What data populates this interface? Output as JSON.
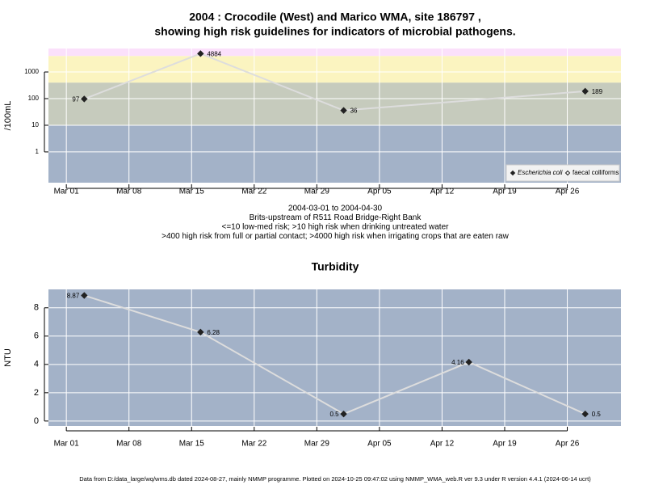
{
  "title": [
    "2004 : Crocodile (West) and Marico WMA, site 186797 ,",
    "showing high risk guidelines for indicators of microbial pathogens."
  ],
  "footer": "Data from D:/data_large/wq/wms.db dated 2024-08-27, mainly NMMP programme. Plotted on 2024-10-25 09:47:02 using NMMP_WMA_web.R ver 9.3 under R version 4.4.1 (2024-06-14 ucrt)",
  "chart_data": [
    {
      "type": "line",
      "log_y": true,
      "ylabel": "/100mL",
      "x": [
        "Mar 03",
        "Mar 16",
        "Apr 01",
        "Apr 28"
      ],
      "series": [
        {
          "name": "Escherichia coli",
          "color": "#222222",
          "values": [
            97,
            4884,
            36,
            189
          ]
        },
        {
          "name": "faecal colliforms",
          "color": "#222222",
          "values": [
            null,
            null,
            null,
            null
          ]
        }
      ],
      "line_color": "#dddddd",
      "xlim": [
        "Feb 28",
        "May 02"
      ],
      "xticks": [
        "Mar 01",
        "Mar 08",
        "Mar 15",
        "Mar 22",
        "Mar 29",
        "Apr 05",
        "Apr 12",
        "Apr 19",
        "Apr 26"
      ],
      "ylim": [
        0.07,
        7600
      ],
      "yticks": [
        1,
        10,
        100,
        1000
      ],
      "grid": true,
      "legend": "bottom-right",
      "bands": {
        "thresholds": [
          10,
          400,
          4000
        ],
        "colors": [
          "#a3b2c8",
          "#c6cbbd",
          "#fbf4c0",
          "#fbe0fb"
        ]
      },
      "notes": [
        "2004-03-01 to 2004-04-30",
        "Brits-upstream of R511 Road Bridge-Right Bank",
        "<=10 low-med risk; >10 high risk when drinking untreated water",
        ">400 high risk from full or partial contact; >4000 high risk when irrigating crops that are eaten raw"
      ]
    },
    {
      "type": "line",
      "title": "Turbidity",
      "ylabel": "NTU",
      "x": [
        "Mar 03",
        "Mar 16",
        "Apr 01",
        "Apr 15",
        "Apr 28"
      ],
      "values": [
        8.87,
        6.28,
        0.5,
        4.16,
        0.5
      ],
      "color": "#222222",
      "line_color": "#dddddd",
      "background": "#a3b2c8",
      "xlim": [
        "Feb 28",
        "May 02"
      ],
      "xticks": [
        "Mar 01",
        "Mar 08",
        "Mar 15",
        "Mar 22",
        "Mar 29",
        "Apr 05",
        "Apr 12",
        "Apr 19",
        "Apr 26"
      ],
      "ylim": [
        -0.35,
        9.3
      ],
      "yticks": [
        0,
        2,
        4,
        6,
        8
      ],
      "grid": true
    }
  ]
}
